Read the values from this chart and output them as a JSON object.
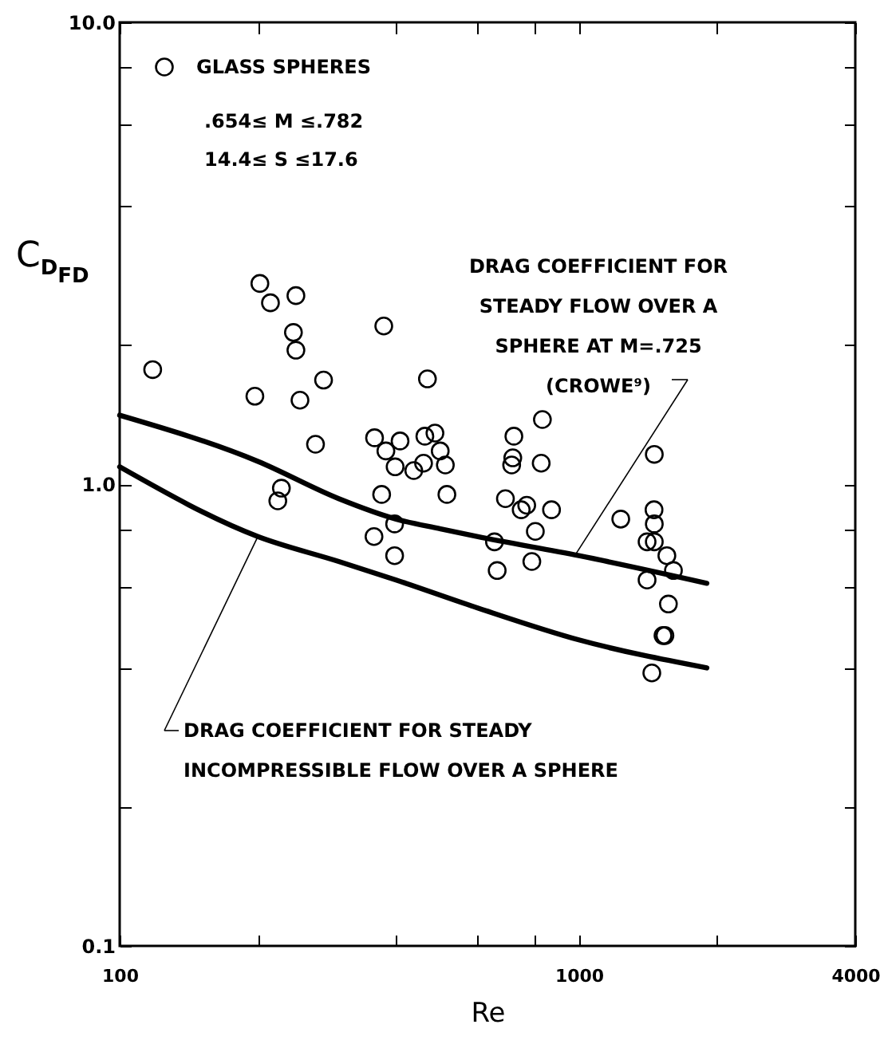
{
  "chart_data": {
    "type": "scatter",
    "xlabel": "Re",
    "ylabel": "C$_{D}$$_{FD}$",
    "log": "xy",
    "grid": false,
    "legend": "top left",
    "xlim": [
      100,
      4000
    ],
    "xticks": [
      100,
      {
        "value": 200,
        "label": null
      },
      {
        "value": 400,
        "label": null
      },
      {
        "value": 600,
        "label": null
      },
      {
        "value": 800,
        "label": null
      },
      1000,
      {
        "value": 2000,
        "label": null
      },
      4000
    ],
    "ylim": [
      0.1,
      10
    ],
    "yticks": [
      0.1,
      {
        "value": 0.2,
        "label": null
      },
      {
        "value": 0.4,
        "label": null
      },
      {
        "value": 0.6,
        "label": null
      },
      {
        "value": 0.8,
        "label": null
      },
      {
        "value": 1,
        "label": "1.0"
      },
      {
        "value": 2,
        "label": null
      },
      {
        "value": 4,
        "label": null
      },
      {
        "value": 6,
        "label": null
      },
      {
        "value": 8,
        "label": null
      },
      {
        "value": 10,
        "label": "10.0"
      }
    ],
    "series": [
      {
        "name": "GLASS SPHERES",
        "marker": "circle",
        "color": "#000000",
        "x": [
          118,
          202,
          213,
          242,
          239,
          242,
          197,
          247,
          278,
          267,
          225,
          221,
          376,
          468,
          359,
          380,
          408,
          398,
          437,
          459,
          462,
          486,
          499,
          512,
          372,
          516,
          722,
          833,
          718,
          714,
          828,
          1460,
          692,
          749,
          770,
          872,
          1234,
          1458,
          1460,
          1408,
          1460,
          1555,
          1607,
          1408,
          1567,
          1540,
          1525,
          1442,
          397,
          358,
          397,
          655,
          664,
          804,
          790
        ],
        "values": [
          1.77,
          2.72,
          2.47,
          2.56,
          2.13,
          1.95,
          1.55,
          1.52,
          1.68,
          1.22,
          0.98,
          0.92,
          2.2,
          1.69,
          1.26,
          1.18,
          1.24,
          1.09,
          1.07,
          1.11,
          1.27,
          1.29,
          1.18,
          1.1,
          0.95,
          0.95,
          1.27,
          1.38,
          1.14,
          1.1,
          1.11,
          1.16,
          0.93,
          0.88,
          0.9,
          0.88,
          0.84,
          0.88,
          0.82,
          0.75,
          0.75,
          0.7,
          0.65,
          0.62,
          0.55,
          0.47,
          0.47,
          0.39,
          0.82,
          0.77,
          0.7,
          0.75,
          0.65,
          0.79,
          0.68
        ]
      },
      {
        "type": "line",
        "color": "#000000",
        "x": [
          100,
          200,
          300,
          400,
          500,
          600,
          1000,
          1900
        ],
        "values": [
          1.41,
          1.12,
          0.93,
          0.84,
          0.8,
          0.77,
          0.7,
          0.61
        ]
      },
      {
        "type": "line",
        "color": "#000000",
        "x": [
          100,
          200,
          300,
          400,
          600,
          1000,
          1900
        ],
        "values": [
          1.09,
          0.77,
          0.68,
          0.62,
          0.54,
          0.46,
          0.4
        ]
      }
    ],
    "annotations": [
      ".654≤ M ≤.782",
      "14.4≤ S ≤17.6",
      {
        "text": "DRAG COEFFICIENT FOR\nSTEADY FLOW OVER A\nSPHERE AT M=.725\n(CROWE⁹)",
        "x": 980,
        "y": 0.7
      },
      {
        "text": "DRAG COEFFICIENT FOR STEADY\nINCOMPRESSIBLE FLOW OVER A SPHERE",
        "x": 200,
        "y": 0.77
      }
    ]
  }
}
